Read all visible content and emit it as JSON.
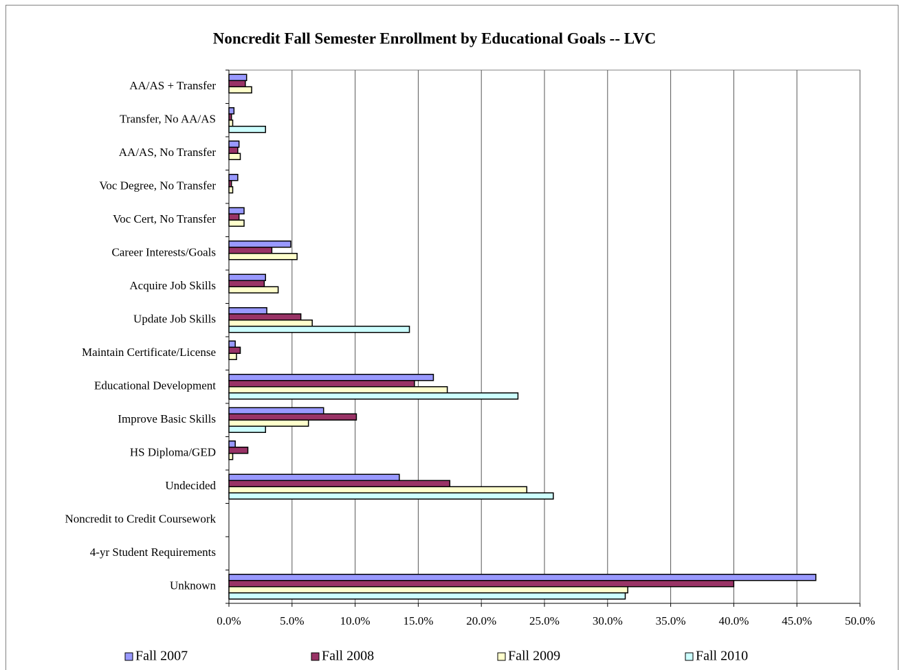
{
  "chart_data": {
    "type": "bar",
    "orientation": "horizontal",
    "title": "Noncredit Fall Semester Enrollment by Educational Goals -- LVC",
    "categories": [
      "AA/AS + Transfer",
      "Transfer, No AA/AS",
      "AA/AS, No Transfer",
      "Voc Degree, No Transfer",
      "Voc Cert, No Transfer",
      "Career Interests/Goals",
      "Acquire Job Skills",
      "Update Job Skills",
      "Maintain Certificate/License",
      "Educational Development",
      "Improve Basic Skills",
      "HS Diploma/GED",
      "Undecided",
      "Noncredit to Credit Coursework",
      "4-yr Student Requirements",
      "Unknown"
    ],
    "series": [
      {
        "name": "Fall 2007",
        "color": "#9999ff",
        "values": [
          1.4,
          0.4,
          0.8,
          0.7,
          1.2,
          4.9,
          2.9,
          3.0,
          0.5,
          16.2,
          7.5,
          0.5,
          13.5,
          0,
          0,
          46.5
        ]
      },
      {
        "name": "Fall 2008",
        "color": "#993366",
        "values": [
          1.3,
          0.2,
          0.7,
          0.2,
          0.8,
          3.4,
          2.8,
          5.7,
          0.9,
          14.7,
          10.1,
          1.5,
          17.5,
          0,
          0,
          40.0
        ]
      },
      {
        "name": "Fall 2009",
        "color": "#ffffcc",
        "values": [
          1.8,
          0.3,
          0.9,
          0.3,
          1.2,
          5.4,
          3.9,
          6.6,
          0.6,
          17.3,
          6.3,
          0.3,
          23.6,
          0,
          0,
          31.6
        ]
      },
      {
        "name": "Fall 2010",
        "color": "#ccffff",
        "values": [
          0,
          2.9,
          0,
          0,
          0,
          0,
          0,
          14.3,
          0,
          22.9,
          2.9,
          0,
          25.7,
          0,
          0,
          31.4
        ]
      }
    ],
    "xlim": [
      0,
      50
    ],
    "xticks": [
      {
        "value": 0,
        "label": "0.0%"
      },
      {
        "value": 5,
        "label": "5.0%"
      },
      {
        "value": 10,
        "label": "10.0%"
      },
      {
        "value": 15,
        "label": "15.0%"
      },
      {
        "value": 20,
        "label": "20.0%"
      },
      {
        "value": 25,
        "label": "25.0%"
      },
      {
        "value": 30,
        "label": "30.0%"
      },
      {
        "value": 35,
        "label": "35.0%"
      },
      {
        "value": 40,
        "label": "40.0%"
      },
      {
        "value": 45,
        "label": "45.0%"
      },
      {
        "value": 50,
        "label": "50.0%"
      }
    ],
    "grid": true,
    "legend": "bottom"
  }
}
